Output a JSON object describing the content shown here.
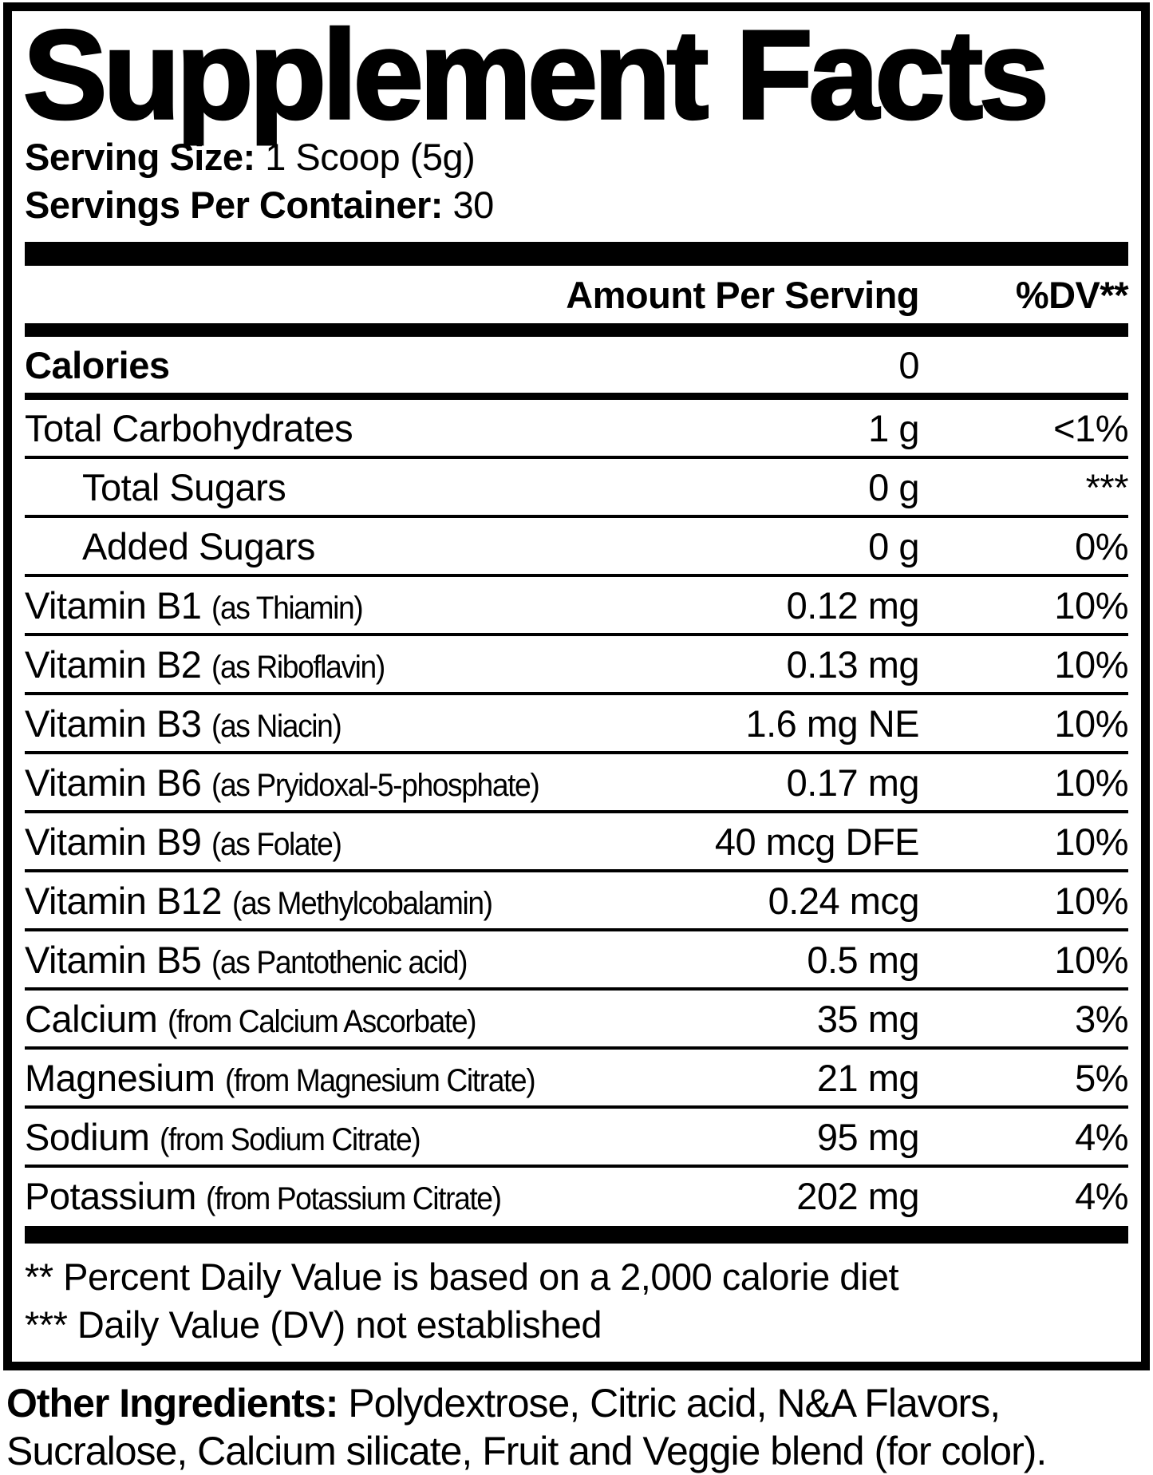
{
  "label": {
    "title": "Supplement Facts",
    "serving_size_label": "Serving Size:",
    "serving_size_value": " 1 Scoop (5g)",
    "servings_per_container_label": "Servings Per Container:",
    "servings_per_container_value": " 30",
    "header": {
      "amount": "Amount Per Serving",
      "dv": "%DV**"
    },
    "rows": [
      {
        "name": "Calories",
        "detail": "",
        "amount": "0",
        "dv": ""
      },
      {
        "name": "Total Carbohydrates",
        "detail": "",
        "amount": "1 g",
        "dv": "<1%"
      },
      {
        "name": "Total Sugars",
        "detail": "",
        "amount": "0 g",
        "dv": "***"
      },
      {
        "name": "Added Sugars",
        "detail": "",
        "amount": "0 g",
        "dv": "0%"
      },
      {
        "name": "Vitamin B1",
        "detail": "(as Thiamin)",
        "amount": "0.12 mg",
        "dv": "10%"
      },
      {
        "name": "Vitamin B2",
        "detail": "(as Riboflavin)",
        "amount": "0.13 mg",
        "dv": "10%"
      },
      {
        "name": "Vitamin B3",
        "detail": "(as Niacin)",
        "amount": "1.6 mg NE",
        "dv": "10%"
      },
      {
        "name": "Vitamin B6",
        "detail": "(as Pryidoxal-5-phosphate)",
        "amount": "0.17 mg",
        "dv": "10%"
      },
      {
        "name": "Vitamin B9",
        "detail": "(as Folate)",
        "amount": "40 mcg DFE",
        "dv": "10%"
      },
      {
        "name": "Vitamin B12",
        "detail": "(as Methylcobalamin)",
        "amount": "0.24 mcg",
        "dv": "10%"
      },
      {
        "name": "Vitamin B5",
        "detail": "(as Pantothenic acid)",
        "amount": "0.5 mg",
        "dv": "10%"
      },
      {
        "name": "Calcium",
        "detail": "(from Calcium Ascorbate)",
        "amount": "35 mg",
        "dv": "3%"
      },
      {
        "name": "Magnesium",
        "detail": "(from Magnesium Citrate)",
        "amount": "21 mg",
        "dv": "5%"
      },
      {
        "name": "Sodium",
        "detail": "(from Sodium Citrate)",
        "amount": "95 mg",
        "dv": "4%"
      },
      {
        "name": "Potassium",
        "detail": "(from Potassium Citrate)",
        "amount": "202 mg",
        "dv": "4%"
      }
    ],
    "footnotes": [
      "** Percent Daily Value is based on a 2,000 calorie diet",
      "*** Daily Value (DV) not established"
    ],
    "other_ingredients_label": "Other Ingredients:",
    "other_ingredients_value": " Polydextrose, Citric acid, N&A Flavors, Sucralose, Calcium silicate, Fruit and Veggie blend (for color).",
    "colors": {
      "ink": "#000000",
      "background": "#ffffff"
    }
  }
}
